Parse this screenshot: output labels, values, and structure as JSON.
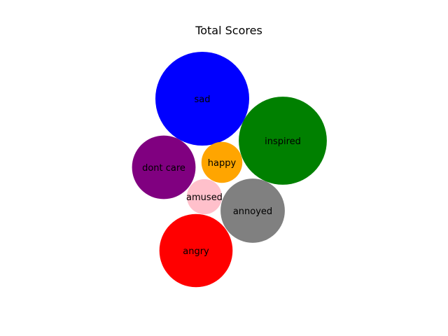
{
  "chart_data": {
    "type": "bubble",
    "title": "Total Scores",
    "bubbles": [
      {
        "label": "sad",
        "value": 100,
        "color": "#0000ff"
      },
      {
        "label": "inspired",
        "value": 88,
        "color": "#008000"
      },
      {
        "label": "dont care",
        "value": 46,
        "color": "#800080"
      },
      {
        "label": "happy",
        "value": 19,
        "color": "#ffa500"
      },
      {
        "label": "amused",
        "value": 14,
        "color": "#ffc0cb"
      },
      {
        "label": "annoyed",
        "value": 47,
        "color": "#808080"
      },
      {
        "label": "angry",
        "value": 61,
        "color": "#ff0000"
      }
    ]
  }
}
